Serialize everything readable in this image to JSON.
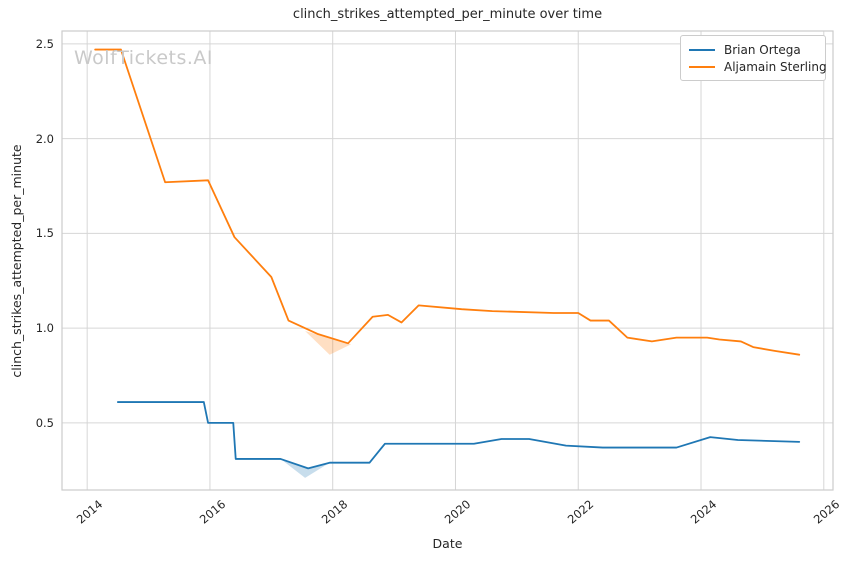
{
  "chart": {
    "title": "clinch_strikes_attempted_per_minute over time",
    "watermark": "WolfTickets.AI",
    "xlabel": "Date",
    "ylabel": "clinch_strikes_attempted_per_minute"
  },
  "legend": {
    "items": [
      {
        "label": "Brian Ortega",
        "color": "#1f77b4"
      },
      {
        "label": "Aljamain Sterling",
        "color": "#ff7f0e"
      }
    ]
  },
  "chart_data": {
    "type": "line",
    "title": "clinch_strikes_attempted_per_minute over time",
    "xlabel": "Date",
    "ylabel": "clinch_strikes_attempted_per_minute",
    "grid": true,
    "legend_position": "upper right",
    "x_range": [
      2013.59,
      2026.15
    ],
    "y_range": [
      0.146,
      2.568
    ],
    "x_ticks": [
      2014,
      2016,
      2018,
      2020,
      2022,
      2024,
      2026
    ],
    "x_tick_labels": [
      "2014",
      "2016",
      "2018",
      "2020",
      "2022",
      "2024",
      "2026"
    ],
    "y_ticks": [
      0.5,
      1.0,
      1.5,
      2.0,
      2.5
    ],
    "y_tick_labels": [
      "0.5",
      "1.0",
      "1.5",
      "2.0",
      "2.5"
    ],
    "grid_color": "#d6d6d6",
    "spine_color": "#cccccc",
    "series": [
      {
        "name": "Brian Ortega",
        "color": "#1f77b4",
        "points": [
          [
            2014.5,
            0.61
          ],
          [
            2015.9,
            0.61
          ],
          [
            2015.97,
            0.5
          ],
          [
            2016.38,
            0.5
          ],
          [
            2016.42,
            0.31
          ],
          [
            2017.15,
            0.31
          ],
          [
            2017.6,
            0.26
          ],
          [
            2017.95,
            0.29
          ],
          [
            2018.6,
            0.29
          ],
          [
            2018.85,
            0.39
          ],
          [
            2020.3,
            0.39
          ],
          [
            2020.75,
            0.415
          ],
          [
            2021.2,
            0.415
          ],
          [
            2021.8,
            0.38
          ],
          [
            2022.4,
            0.37
          ],
          [
            2023.6,
            0.37
          ],
          [
            2024.15,
            0.425
          ],
          [
            2024.6,
            0.41
          ],
          [
            2025.6,
            0.4
          ]
        ]
      },
      {
        "name": "Aljamain Sterling",
        "color": "#ff7f0e",
        "points": [
          [
            2014.13,
            2.47
          ],
          [
            2014.55,
            2.47
          ],
          [
            2015.27,
            1.77
          ],
          [
            2015.97,
            1.78
          ],
          [
            2016.4,
            1.48
          ],
          [
            2017.0,
            1.27
          ],
          [
            2017.28,
            1.04
          ],
          [
            2017.75,
            0.97
          ],
          [
            2018.25,
            0.92
          ],
          [
            2018.65,
            1.06
          ],
          [
            2018.9,
            1.07
          ],
          [
            2019.12,
            1.03
          ],
          [
            2019.4,
            1.12
          ],
          [
            2020.1,
            1.1
          ],
          [
            2020.6,
            1.09
          ],
          [
            2021.6,
            1.08
          ],
          [
            2022.0,
            1.08
          ],
          [
            2022.2,
            1.04
          ],
          [
            2022.5,
            1.04
          ],
          [
            2022.8,
            0.95
          ],
          [
            2023.2,
            0.93
          ],
          [
            2023.6,
            0.95
          ],
          [
            2024.1,
            0.95
          ],
          [
            2024.3,
            0.94
          ],
          [
            2024.65,
            0.93
          ],
          [
            2024.85,
            0.9
          ],
          [
            2025.2,
            0.88
          ],
          [
            2025.6,
            0.86
          ]
        ]
      }
    ],
    "bands": [
      {
        "series": "Brian Ortega",
        "color": "#1f77b4",
        "opacity": 0.25,
        "polygon": [
          [
            2017.15,
            0.31
          ],
          [
            2017.6,
            0.26
          ],
          [
            2017.95,
            0.29
          ],
          [
            2017.55,
            0.21
          ]
        ]
      },
      {
        "series": "Aljamain Sterling",
        "color": "#ff7f0e",
        "opacity": 0.25,
        "polygon": [
          [
            2017.55,
            0.985
          ],
          [
            2018.3,
            0.915
          ],
          [
            2017.95,
            0.86
          ]
        ]
      }
    ]
  }
}
